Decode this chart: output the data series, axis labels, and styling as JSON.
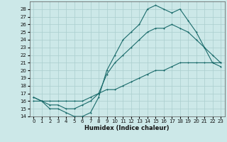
{
  "xlabel": "Humidex (Indice chaleur)",
  "xlim": [
    -0.5,
    23.5
  ],
  "ylim": [
    14,
    29
  ],
  "xticks": [
    0,
    1,
    2,
    3,
    4,
    5,
    6,
    7,
    8,
    9,
    10,
    11,
    12,
    13,
    14,
    15,
    16,
    17,
    18,
    19,
    20,
    21,
    22,
    23
  ],
  "yticks": [
    14,
    15,
    16,
    17,
    18,
    19,
    20,
    21,
    22,
    23,
    24,
    25,
    26,
    27,
    28
  ],
  "bg_color": "#cce8e8",
  "grid_color": "#aacece",
  "line_color": "#1a6b6b",
  "series_max": {
    "x": [
      0,
      1,
      2,
      3,
      4,
      5,
      6,
      7,
      8,
      9,
      10,
      11,
      12,
      13,
      14,
      15,
      16,
      17,
      18,
      19,
      20,
      21,
      22,
      23
    ],
    "y": [
      16.5,
      16,
      15,
      15,
      14.5,
      14,
      14,
      14.5,
      16.5,
      20,
      22,
      24,
      25,
      26,
      28,
      28.5,
      28,
      27.5,
      28,
      26.5,
      25,
      23,
      21,
      20.5
    ]
  },
  "series_mean": {
    "x": [
      0,
      1,
      2,
      3,
      4,
      5,
      6,
      7,
      8,
      9,
      10,
      11,
      12,
      13,
      14,
      15,
      16,
      17,
      18,
      19,
      20,
      21,
      22,
      23
    ],
    "y": [
      16.5,
      16,
      15.5,
      15.5,
      15,
      15,
      15.5,
      16,
      17,
      19.5,
      21,
      22,
      23,
      24,
      25,
      25.5,
      25.5,
      26,
      25.5,
      25,
      24,
      23,
      22,
      21
    ]
  },
  "series_min": {
    "x": [
      0,
      1,
      2,
      3,
      4,
      5,
      6,
      7,
      8,
      9,
      10,
      11,
      12,
      13,
      14,
      15,
      16,
      17,
      18,
      19,
      20,
      21,
      22,
      23
    ],
    "y": [
      16,
      16,
      16,
      16,
      16,
      16,
      16,
      16.5,
      17,
      17.5,
      17.5,
      18,
      18.5,
      19,
      19.5,
      20,
      20,
      20.5,
      21,
      21,
      21,
      21,
      21,
      21
    ]
  }
}
